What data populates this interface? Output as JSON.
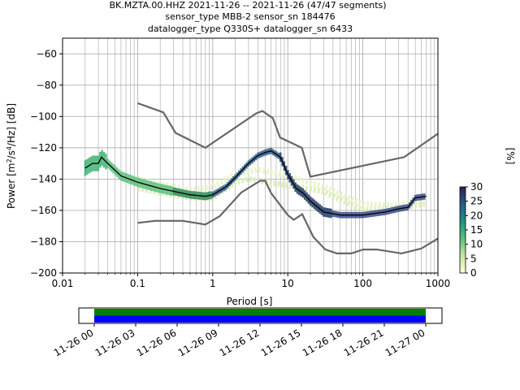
{
  "chart_data": [
    {
      "type": "ppsd",
      "title_lines": [
        "BK.MZTA.00.HHZ   2021-11-26 -- 2021-11-26  (47/47 segments)",
        "sensor_type MBB-2 sensor_sn 184476",
        "datalogger_type Q330S+ datalogger_sn 6433"
      ],
      "xlabel": "Period [s]",
      "ylabel": "Power [m²/s⁴/Hz] [dB]",
      "x_scale": "log",
      "xlim": [
        0.01,
        1000
      ],
      "ylim": [
        -200,
        -50
      ],
      "x_ticks": [
        0.01,
        0.1,
        1,
        10,
        100,
        1000
      ],
      "x_tick_labels": [
        "0.01",
        "0.1",
        "1",
        "10",
        "100",
        "1000"
      ],
      "y_ticks": [
        -200,
        -180,
        -160,
        -140,
        -120,
        -100,
        -80,
        -60
      ],
      "grid": true,
      "noise_models": [
        {
          "name": "high_noise_model",
          "points": [
            [
              0.1,
              -91.5
            ],
            [
              0.22,
              -97.4
            ],
            [
              0.32,
              -110.5
            ],
            [
              0.8,
              -120
            ],
            [
              3.8,
              -98
            ],
            [
              4.6,
              -96.5
            ],
            [
              6.3,
              -101
            ],
            [
              7.9,
              -113.5
            ],
            [
              15.4,
              -120
            ],
            [
              20,
              -138.5
            ],
            [
              354.8,
              -126
            ],
            [
              1000,
              -111
            ]
          ]
        },
        {
          "name": "low_noise_model",
          "points": [
            [
              0.1,
              -168
            ],
            [
              0.17,
              -166.7
            ],
            [
              0.4,
              -166.7
            ],
            [
              0.8,
              -169
            ],
            [
              1.24,
              -163.7
            ],
            [
              2.4,
              -148.6
            ],
            [
              4.3,
              -141.1
            ],
            [
              5,
              -141.1
            ],
            [
              6,
              -149
            ],
            [
              10,
              -163
            ],
            [
              12,
              -166
            ],
            [
              15.6,
              -162.4
            ],
            [
              21.9,
              -177
            ],
            [
              31.6,
              -185
            ],
            [
              45,
              -187.5
            ],
            [
              70,
              -187.5
            ],
            [
              101,
              -185
            ],
            [
              154,
              -185
            ],
            [
              328,
              -187.5
            ],
            [
              600,
              -184.4
            ],
            [
              1000,
              -178
            ]
          ]
        }
      ],
      "mode_curve": [
        [
          0.02,
          -133
        ],
        [
          0.025,
          -130
        ],
        [
          0.03,
          -130
        ],
        [
          0.033,
          -126
        ],
        [
          0.04,
          -130
        ],
        [
          0.06,
          -138
        ],
        [
          0.1,
          -142
        ],
        [
          0.2,
          -146
        ],
        [
          0.5,
          -150
        ],
        [
          0.8,
          -151
        ],
        [
          1,
          -150
        ],
        [
          1.5,
          -145
        ],
        [
          2,
          -139
        ],
        [
          3,
          -130
        ],
        [
          4,
          -125
        ],
        [
          5,
          -123
        ],
        [
          6,
          -122
        ],
        [
          8,
          -126
        ],
        [
          10,
          -137
        ],
        [
          13,
          -146
        ],
        [
          16,
          -149
        ],
        [
          20,
          -154
        ],
        [
          30,
          -161
        ],
        [
          50,
          -163
        ],
        [
          100,
          -163
        ],
        [
          200,
          -161
        ],
        [
          300,
          -159
        ],
        [
          400,
          -158
        ],
        [
          500,
          -152
        ],
        [
          700,
          -151
        ]
      ],
      "percentile_colorbar": {
        "label": "[%]",
        "range": [
          0,
          30
        ],
        "ticks": [
          0,
          5,
          10,
          15,
          20,
          25,
          30
        ],
        "colormap": [
          "#ffffe0",
          "#c6e6a0",
          "#58c080",
          "#1f9080",
          "#2b5a8a",
          "#2a1f4d"
        ]
      },
      "density_bands": [
        {
          "period_range": [
            0.02,
            0.04
          ],
          "center_db": -132,
          "spread_db": 10,
          "color": "#3cb371"
        },
        {
          "period_range": [
            0.04,
            0.3
          ],
          "center_db": -143,
          "spread_db": 6,
          "color": "#5ac07a"
        },
        {
          "period_range": [
            0.3,
            1
          ],
          "center_db": -150,
          "spread_db": 5,
          "color": "#2e8b57"
        },
        {
          "period_range": [
            1,
            8
          ],
          "center_db": -132,
          "spread_db": 4,
          "color": "#2b5a8a"
        },
        {
          "period_range": [
            8,
            40
          ],
          "center_db": -150,
          "spread_db": 6,
          "color": "#1f3a66"
        },
        {
          "period_range": [
            40,
            700
          ],
          "center_db": -162,
          "spread_db": 4,
          "color": "#3a4a8a"
        }
      ],
      "faint_bands": [
        {
          "points": [
            [
              0.1,
              -146
            ],
            [
              0.5,
              -152
            ],
            [
              1,
              -152
            ],
            [
              2,
              -142
            ],
            [
              3,
              -140
            ],
            [
              10,
              -144
            ],
            [
              30,
              -148
            ],
            [
              100,
              -160
            ],
            [
              300,
              -158
            ],
            [
              700,
              -156
            ]
          ],
          "color": "#d8ecb0"
        },
        {
          "points": [
            [
              0.1,
              -140
            ],
            [
              0.5,
              -147
            ],
            [
              1,
              -145
            ],
            [
              2,
              -137
            ],
            [
              4,
              -134
            ],
            [
              10,
              -138
            ],
            [
              30,
              -145
            ],
            [
              100,
              -156
            ],
            [
              300,
              -157
            ],
            [
              700,
              -152
            ]
          ],
          "color": "#e6f2c4"
        }
      ]
    },
    {
      "type": "timeline",
      "x_tick_labels": [
        "11-26 00",
        "11-26 03",
        "11-26 06",
        "11-26 09",
        "11-26 12",
        "11-26 15",
        "11-26 18",
        "11-26 21",
        "11-27 00"
      ],
      "coverage_range": [
        "11-26 00",
        "11-27 00"
      ],
      "coverage_colors": [
        "#008000",
        "#0000ff"
      ]
    }
  ]
}
